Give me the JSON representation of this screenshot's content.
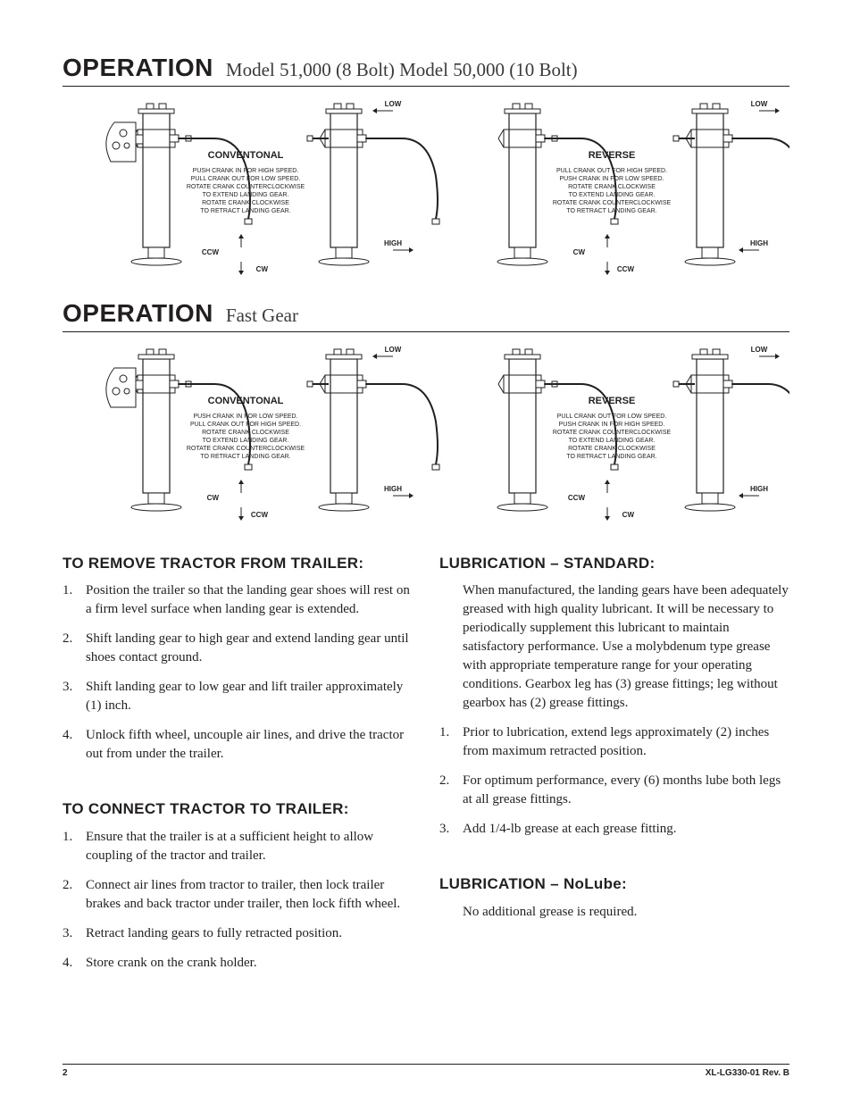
{
  "headings": {
    "op1_word": "OPERATION",
    "op1_sub": "Model 51,000 (8 Bolt)   Model 50,000 (10 Bolt)",
    "op2_word": "OPERATION",
    "op2_sub": "Fast Gear"
  },
  "diagrams": {
    "stroke": "#231f20",
    "fill": "#ffffff",
    "set1": {
      "left": {
        "title": "CONVENTONAL",
        "lines": [
          "PUSH CRANK IN FOR HIGH SPEED.",
          "PULL CRANK OUT FOR LOW SPEED.",
          "ROTATE CRANK COUNTERCLOCKWISE",
          "TO EXTEND LANDING GEAR.",
          "ROTATE CRANK CLOCKWISE",
          "TO RETRACT LANDING GEAR."
        ],
        "low": "LOW",
        "high": "HIGH",
        "cw": "CW",
        "ccw": "CCW",
        "low_arrow_dir": "left",
        "ccw_pos": "top"
      },
      "right": {
        "title": "REVERSE",
        "lines": [
          "PULL CRANK OUT FOR HIGH SPEED.",
          "PUSH CRANK IN FOR LOW SPEED.",
          "ROTATE CRANK CLOCKWISE",
          "TO EXTEND LANDING GEAR.",
          "ROTATE CRANK COUNTERCLOCKWISE",
          "TO RETRACT LANDING GEAR."
        ],
        "low": "LOW",
        "high": "HIGH",
        "cw": "CW",
        "ccw": "CCW",
        "low_arrow_dir": "right",
        "ccw_pos": "bottom"
      }
    },
    "set2": {
      "left": {
        "title": "CONVENTONAL",
        "lines": [
          "PUSH CRANK IN FOR LOW SPEED.",
          "PULL CRANK OUT FOR HIGH SPEED.",
          "ROTATE CRANK CLOCKWISE",
          "TO EXTEND LANDING GEAR.",
          "ROTATE CRANK COUNTERCLOCKWISE",
          "TO RETRACT LANDING GEAR."
        ],
        "low": "LOW",
        "high": "HIGH",
        "cw": "CW",
        "ccw": "CCW",
        "low_arrow_dir": "left",
        "ccw_pos": "bottom"
      },
      "right": {
        "title": "REVERSE",
        "lines": [
          "PULL CRANK OUT FOR LOW SPEED.",
          "PUSH CRANK IN FOR HIGH SPEED.",
          "ROTATE CRANK COUNTERCLOCKWISE",
          "TO EXTEND LANDING GEAR.",
          "ROTATE CRANK CLOCKWISE",
          "TO RETRACT LANDING GEAR."
        ],
        "low": "LOW",
        "high": "HIGH",
        "cw": "CW",
        "ccw": "CCW",
        "low_arrow_dir": "right",
        "ccw_pos": "top"
      }
    }
  },
  "sections": {
    "remove": {
      "heading": "TO REMOVE TRACTOR FROM TRAILER:",
      "items": [
        "Position the trailer so that the landing gear shoes will rest on a firm level surface when landing gear is extended.",
        "Shift landing gear to high gear and extend landing gear until shoes contact ground.",
        "Shift landing gear to low gear and lift trailer approximately (1) inch.",
        "Unlock fifth wheel, uncouple air lines, and drive the tractor out from under the trailer."
      ]
    },
    "connect": {
      "heading": "TO CONNECT TRACTOR TO TRAILER:",
      "items": [
        "Ensure that the trailer is at a sufficient height to allow coupling of the tractor and trailer.",
        "Connect air lines from tractor to trailer, then lock trailer brakes and back tractor under trailer, then lock fifth wheel.",
        "Retract landing gears to fully retracted position.",
        "Store crank on the crank holder."
      ]
    },
    "lub_std": {
      "heading": "LUBRICATION – STANDARD:",
      "intro": "When manufactured, the landing gears have been adequately greased with high quality lubricant. It will be necessary to periodically supplement this lubricant to maintain satisfactory performance. Use a molybdenum type grease with appropriate temperature range for your operating conditions. Gearbox leg has (3) grease fittings; leg without gearbox has (2) grease fittings.",
      "items": [
        "Prior to lubrication, extend legs approximately (2) inches from maximum retracted position.",
        "For optimum performance, every (6) months lube both legs at all grease fittings.",
        "Add 1/4-lb grease at each grease fitting."
      ]
    },
    "lub_no": {
      "heading": "LUBRICATION – NoLube:",
      "intro": "No additional grease is required."
    }
  },
  "footer": {
    "page": "2",
    "doc": "XL-LG330-01 Rev. B"
  }
}
